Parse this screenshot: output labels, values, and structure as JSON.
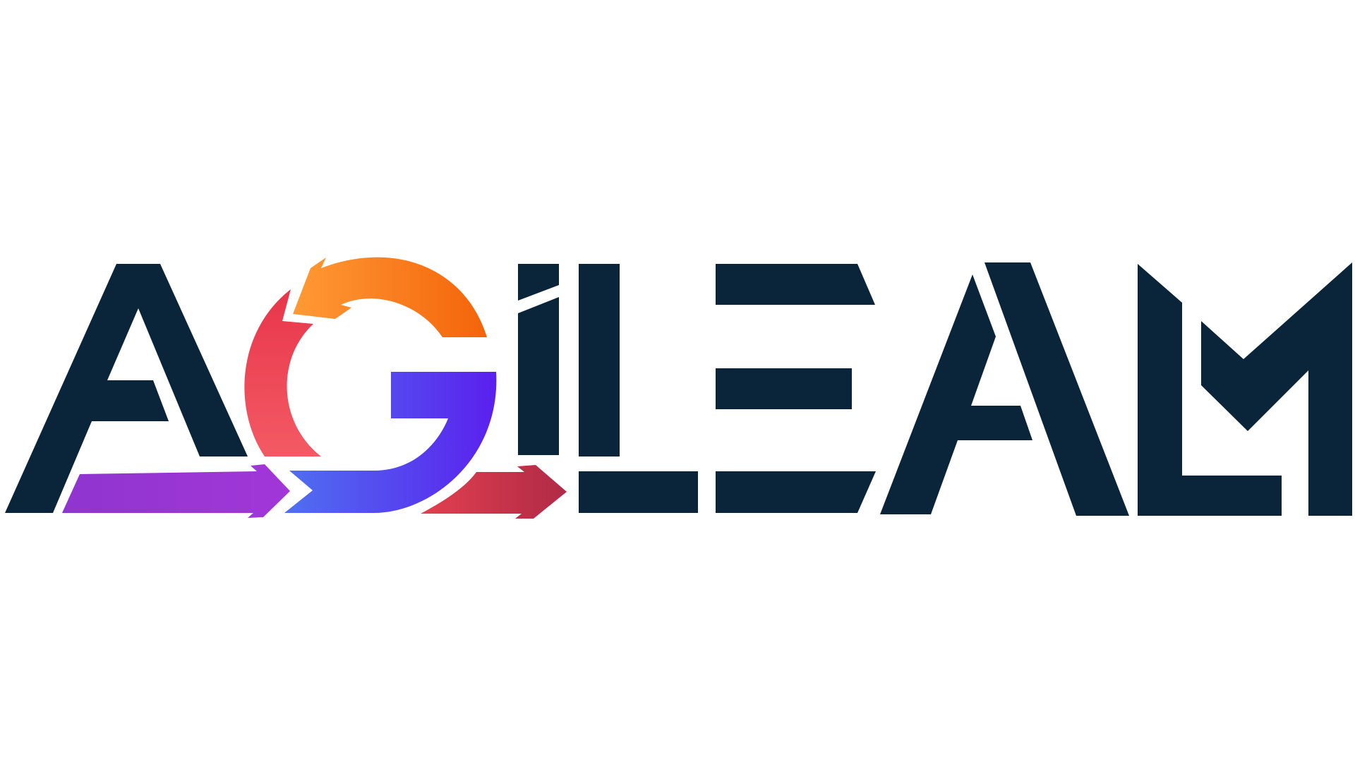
{
  "logo": {
    "text": "AGiLEALM",
    "colors": {
      "navy": "#0A253A",
      "orange_start": "#FF9A35",
      "orange_end": "#F4640A",
      "red": "#F0465A",
      "crimson": "#B82B48",
      "purple_start": "#8F35CF",
      "purple_end": "#A236D8",
      "blue_start": "#4F70F0",
      "blue_end": "#5B20EE"
    },
    "icons": [
      "cycle-arrow-icon",
      "forward-arrow-icon"
    ]
  }
}
